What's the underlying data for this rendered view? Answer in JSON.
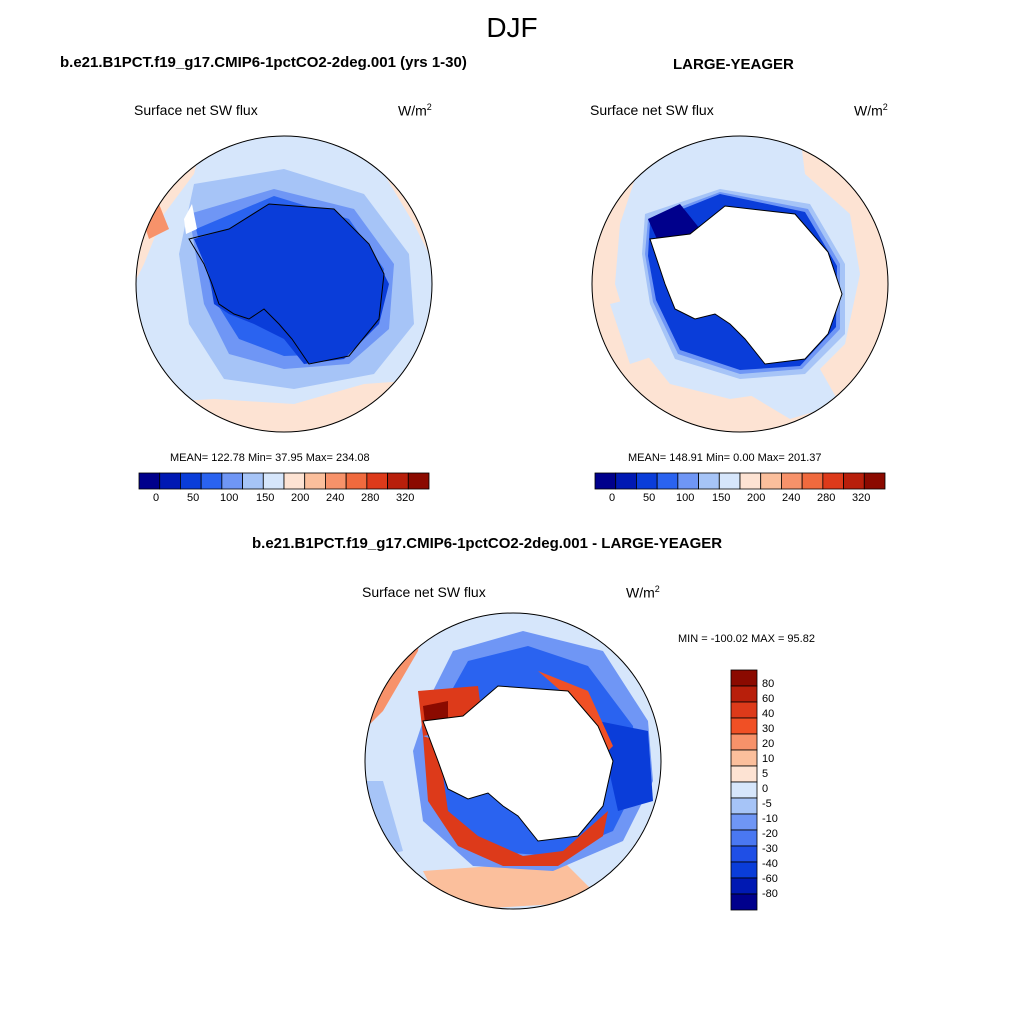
{
  "season": "DJF",
  "panels": [
    {
      "title": "b.e21.B1PCT.f19_g17.CMIP6-1pctCO2-2deg.001 (yrs 1-30)",
      "variable": "Surface net SW flux",
      "units_base": "W/m",
      "units_exp": "2",
      "stats": "MEAN= 122.78  Min=  37.95  Max= 234.08",
      "colorbar_labels": [
        "0",
        "50",
        "100",
        "150",
        "200",
        "240",
        "280",
        "320"
      ]
    },
    {
      "title": "LARGE-YEAGER",
      "variable": "Surface net SW flux",
      "units_base": "W/m",
      "units_exp": "2",
      "stats": "MEAN= 148.91  Min=   0.00  Max= 201.37",
      "colorbar_labels": [
        "0",
        "50",
        "100",
        "150",
        "200",
        "240",
        "280",
        "320"
      ]
    },
    {
      "title": "b.e21.B1PCT.f19_g17.CMIP6-1pctCO2-2deg.001 - LARGE-YEAGER",
      "variable": "Surface net SW flux",
      "units_base": "W/m",
      "units_exp": "2",
      "stats": "MIN = -100.02 MAX =  95.82",
      "colorbar_labels": [
        "80",
        "60",
        "40",
        "30",
        "20",
        "10",
        "5",
        "0",
        "-5",
        "-10",
        "-20",
        "-30",
        "-40",
        "-60",
        "-80"
      ]
    }
  ],
  "colors": {
    "abs_scale": [
      "#00008c",
      "#0019b3",
      "#0a3dd9",
      "#2a63f0",
      "#6f96f5",
      "#a6c4f7",
      "#d6e6fb",
      "#fde3d3",
      "#fbbf9c",
      "#f7926a",
      "#f06a3e",
      "#dd3a1a",
      "#b81f0b",
      "#8b0a00"
    ],
    "diff_scale": [
      "#8b0a00",
      "#b81f0b",
      "#dd3a1a",
      "#f05025",
      "#f7926a",
      "#fbbf9c",
      "#fde3d3",
      "#d6e6fb",
      "#a6c4f7",
      "#6f96f5",
      "#4a78f2",
      "#1f4fe6",
      "#0a3dd9",
      "#0019b3",
      "#00008c"
    ],
    "land_white": "#ffffff"
  }
}
